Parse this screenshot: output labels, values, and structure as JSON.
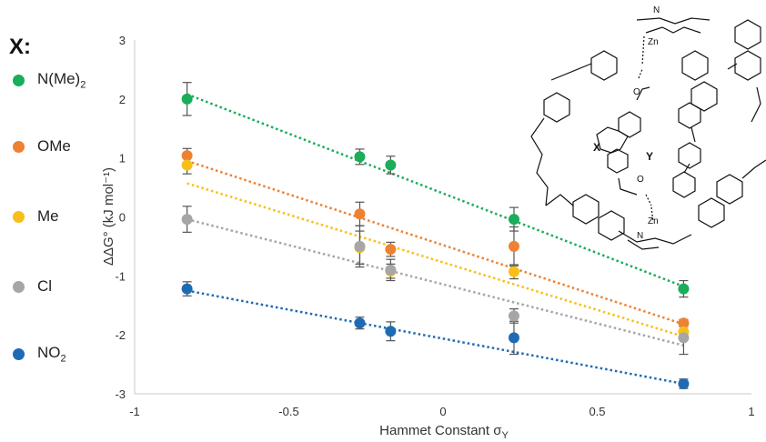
{
  "legend": {
    "title": "X:",
    "items": [
      {
        "label": "N(Me)",
        "sub": "2",
        "color": "#1aad5a"
      },
      {
        "label": "OMe",
        "sub": "",
        "color": "#ee8233"
      },
      {
        "label": "Me",
        "sub": "",
        "color": "#f8bf1a"
      },
      {
        "label": "Cl",
        "sub": "",
        "color": "#a6a6a6"
      },
      {
        "label": "NO",
        "sub": "2",
        "color": "#1f6bb3"
      }
    ]
  },
  "chart_data": {
    "type": "scatter",
    "xlabel": "Hammet Constant σ",
    "xlabel_sub": "Y",
    "ylabel": "ΔΔG° (kJ mol⁻¹)",
    "xlim": [
      -1,
      1
    ],
    "ylim": [
      -3,
      3
    ],
    "xticks": [
      "-1",
      "-0.5",
      "0",
      "0.5",
      "1"
    ],
    "yticks": [
      "3",
      "2",
      "1",
      "0",
      "-1",
      "-2",
      "-3"
    ],
    "x": [
      -0.83,
      -0.27,
      -0.17,
      0.23,
      0.78
    ],
    "series": [
      {
        "name": "N(Me)2",
        "color": "#1aad5a",
        "values": [
          2.0,
          1.02,
          0.88,
          -0.04,
          -1.22
        ],
        "errors": [
          0.28,
          0.13,
          0.15,
          0.2,
          0.14
        ],
        "trend": [
          2.08,
          -1.18
        ]
      },
      {
        "name": "OMe",
        "color": "#ee8233",
        "values": [
          1.04,
          0.05,
          -0.55,
          -0.5,
          -1.8
        ],
        "errors": [
          0.12,
          0.2,
          0.12,
          0.33,
          0.06
        ],
        "trend": [
          0.95,
          -1.82
        ]
      },
      {
        "name": "Me",
        "color": "#f8bf1a",
        "values": [
          0.88,
          -0.52,
          -0.92,
          -0.93,
          -1.95
        ],
        "errors": [
          0.15,
          0.28,
          0.12,
          0.12,
          0.13
        ],
        "trend": [
          0.57,
          -2.03
        ]
      },
      {
        "name": "Cl",
        "color": "#a6a6a6",
        "values": [
          -0.04,
          -0.5,
          -0.9,
          -1.68,
          -2.05
        ],
        "errors": [
          0.22,
          0.35,
          0.18,
          0.12,
          0.28
        ],
        "trend": [
          -0.04,
          -2.18
        ]
      },
      {
        "name": "NO2",
        "color": "#1f6bb3",
        "values": [
          -1.22,
          -1.8,
          -1.94,
          -2.05,
          -2.83
        ],
        "errors": [
          0.12,
          0.1,
          0.16,
          0.28,
          0.08
        ],
        "trend": [
          -1.25,
          -2.83
        ]
      }
    ]
  },
  "molecule": {
    "zn_top": "Zn",
    "zn_bottom": "Zn",
    "n_label": "N",
    "o_label": "O",
    "x_label": "X",
    "y_label": "Y"
  }
}
